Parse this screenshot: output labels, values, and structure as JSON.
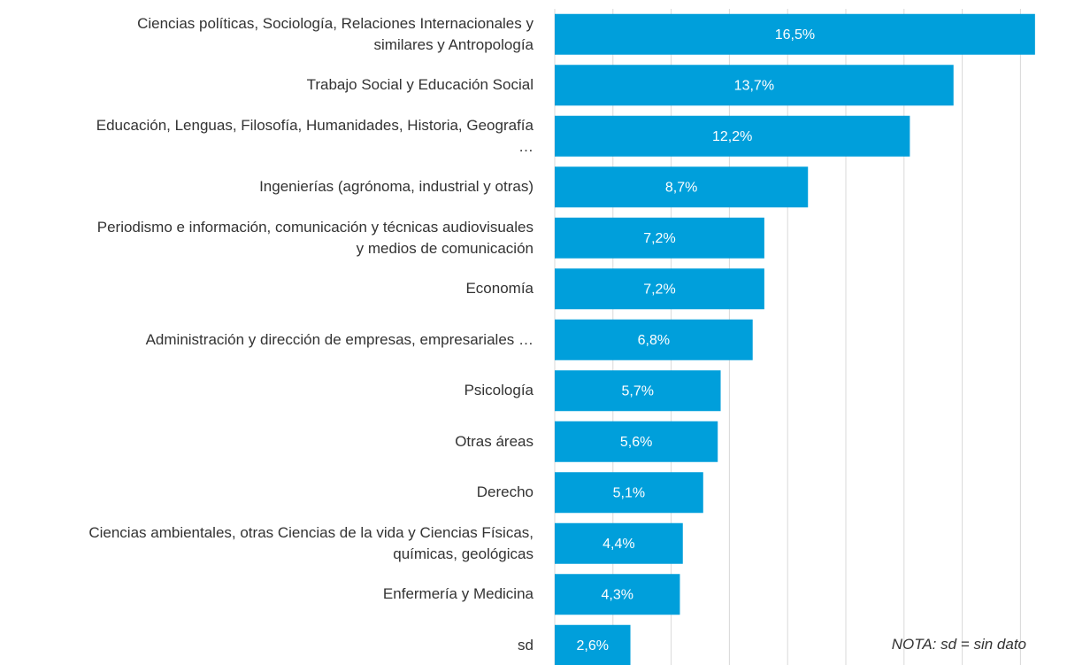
{
  "chart_data": {
    "type": "barh",
    "categories": [
      "Ciencias políticas, Sociología, Relaciones Internacionales y\nsimilares y Antropología",
      "Trabajo Social y Educación Social",
      "Educación, Lenguas, Filosofía, Humanidades, Historia, Geografía\n…",
      "Ingenierías (agrónoma, industrial y otras)",
      "Periodismo e información, comunicación y técnicas audiovisuales\ny medios de comunicación",
      "Economía",
      "Administración y dirección de empresas, empresariales …",
      "Psicología",
      "Otras áreas",
      "Derecho",
      "Ciencias ambientales, otras Ciencias de la vida y Ciencias Físicas,\nquímicas, geológicas",
      "Enfermería y Medicina",
      "sd"
    ],
    "values": [
      16.5,
      13.7,
      12.2,
      8.7,
      7.2,
      7.2,
      6.8,
      5.7,
      5.6,
      5.1,
      4.4,
      4.3,
      2.6
    ],
    "value_labels": [
      "16,5%",
      "13,7%",
      "12,2%",
      "8,7%",
      "7,2%",
      "7,2%",
      "6,8%",
      "5,7%",
      "5,6%",
      "5,1%",
      "4,4%",
      "4,3%",
      "2,6%"
    ],
    "color": "#009fdb",
    "xlim": [
      0,
      17
    ],
    "xticks": [
      0,
      2,
      4,
      6,
      8,
      10,
      12,
      14,
      16
    ],
    "grid": true,
    "annotation": "NOTA: sd = sin dato"
  }
}
